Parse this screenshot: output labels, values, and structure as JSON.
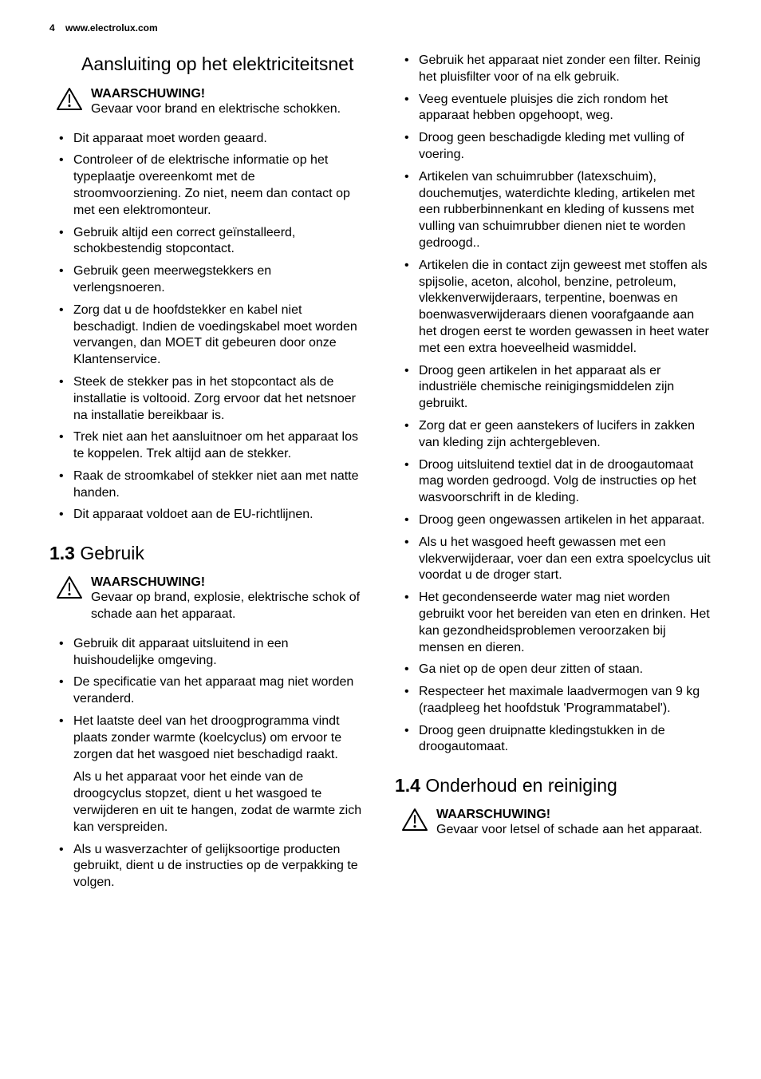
{
  "header": {
    "page_number": "4",
    "site": "www.electrolux.com"
  },
  "col1": {
    "sub_heading": "Aansluiting op het elektriciteitsnet",
    "warn1_title": "WAARSCHUWING!",
    "warn1_text": "Gevaar voor brand en elektrische schokken.",
    "list1": [
      "Dit apparaat moet worden geaard.",
      "Controleer of de elektrische informatie op het typeplaatje overeenkomt met de stroomvoorziening. Zo niet, neem dan contact op met een elektromonteur.",
      "Gebruik altijd een correct geïnstalleerd, schokbestendig stopcontact.",
      "Gebruik geen meerwegstekkers en verlengsnoeren.",
      "Zorg dat u de hoofdstekker en kabel niet beschadigt. Indien de voedingskabel moet worden vervangen, dan MOET dit gebeuren door onze Klantenservice.",
      "Steek de stekker pas in het stopcontact als de installatie is voltooid. Zorg ervoor dat het netsnoer na installatie bereikbaar is.",
      "Trek niet aan het aansluitnoer om het apparaat los te koppelen. Trek altijd aan de stekker.",
      "Raak de stroomkabel of stekker niet aan met natte handen.",
      "Dit apparaat voldoet aan de EU-richtlijnen."
    ],
    "section2_num": "1.3",
    "section2_title": " Gebruik",
    "warn2_title": "WAARSCHUWING!",
    "warn2_text": "Gevaar op brand, explosie, elektrische schok of schade aan het apparaat.",
    "list2a": [
      "Gebruik dit apparaat uitsluitend in een huishoudelijke omgeving.",
      "De specificatie van het apparaat mag niet worden veranderd.",
      "Het laatste deel van het droogprogramma vindt plaats zonder warmte (koelcyclus) om ervoor te zorgen dat het wasgoed niet beschadigd raakt."
    ],
    "cont": "Als u het apparaat voor het einde van de droogcyclus stopzet, dient u het wasgoed te verwijderen en uit te hangen, zodat de warmte zich kan verspreiden.",
    "list2b": [
      "Als u wasverzachter of gelijksoortige producten gebruikt, dient u de instructies op de verpakking te volgen."
    ]
  },
  "col2": {
    "list1": [
      "Gebruik het apparaat niet zonder een filter. Reinig het pluisfilter voor of na elk gebruik.",
      "Veeg eventuele pluisjes die zich rondom het apparaat hebben opgehoopt, weg.",
      "Droog geen beschadigde kleding met vulling of voering.",
      "Artikelen van schuimrubber (latexschuim), douchemutjes, waterdichte kleding, artikelen met een rubberbinnenkant en kleding of kussens met vulling van schuimrubber dienen niet te worden gedroogd..",
      "Artikelen die in contact zijn geweest met stoffen als spijsolie, aceton, alcohol, benzine, petroleum, vlekkenverwijderaars, terpentine, boenwas en boenwasverwijderaars dienen voorafgaande aan het drogen eerst te worden gewassen in heet water met een extra hoeveelheid wasmiddel.",
      "Droog geen artikelen in het apparaat als er industriële chemische reinigingsmiddelen zijn gebruikt.",
      "Zorg dat er geen aanstekers of lucifers in zakken van kleding zijn achtergebleven.",
      "Droog uitsluitend textiel dat in de droogautomaat mag worden gedroogd. Volg de instructies op het wasvoorschrift in de kleding.",
      "Droog geen ongewassen artikelen in het apparaat.",
      "Als u het wasgoed heeft gewassen met een vlekverwijderaar, voer dan een extra spoelcyclus uit voordat u de droger start.",
      "Het gecondenseerde water mag niet worden gebruikt voor het bereiden van eten en drinken. Het kan gezondheidsproblemen veroorzaken bij mensen en dieren.",
      "Ga niet op de open deur zitten of staan.",
      "Respecteer het maximale laadvermogen van 9 kg (raadpleeg het hoofdstuk 'Programmatabel').",
      "Droog geen druipnatte kledingstukken in de droogautomaat."
    ],
    "section3_num": "1.4",
    "section3_title": " Onderhoud en reiniging",
    "warn3_title": "WAARSCHUWING!",
    "warn3_text": "Gevaar voor letsel of schade aan het apparaat."
  },
  "style": {
    "text_color": "#000000",
    "bg_color": "#ffffff",
    "body_fontsize": 16,
    "heading_fontsize": 23,
    "header_fontsize": 12
  }
}
